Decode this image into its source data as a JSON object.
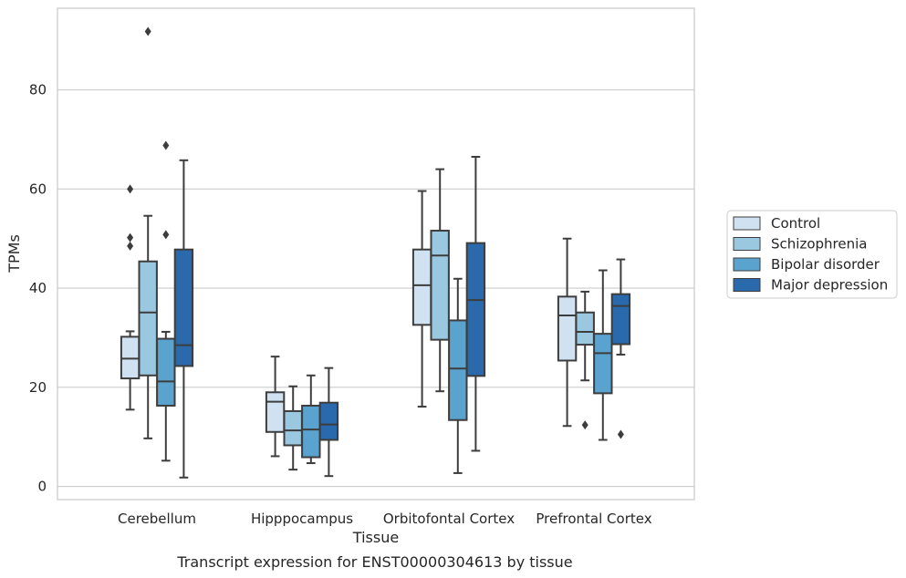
{
  "caption": "Transcript expression for ENST00000304613 by tissue",
  "chart_data": {
    "type": "box",
    "xlabel": "Tissue",
    "ylabel": "TPMs",
    "ylim": [
      -2,
      96
    ],
    "yticks": [
      0,
      20,
      40,
      60,
      80
    ],
    "grid": "horizontal",
    "legend_position": "right-outside",
    "categories": [
      "Cerebellum",
      "Hipppocampus",
      "Orbitofontal Cortex",
      "Prefrontal Cortex"
    ],
    "series": [
      {
        "name": "Control",
        "color": "#d0e1f2",
        "boxes": [
          {
            "whislo": 15.5,
            "q1": 21.8,
            "med": 25.8,
            "q3": 30.2,
            "whishi": 31.3,
            "fliers": [
              48.5,
              50.2,
              60.0
            ]
          },
          {
            "whislo": 6.1,
            "q1": 11.0,
            "med": 17.1,
            "q3": 19.0,
            "whishi": 26.2,
            "fliers": []
          },
          {
            "whislo": 16.1,
            "q1": 32.6,
            "med": 40.6,
            "q3": 47.8,
            "whishi": 59.6,
            "fliers": []
          },
          {
            "whislo": 12.2,
            "q1": 25.4,
            "med": 34.5,
            "q3": 38.3,
            "whishi": 50.0,
            "fliers": []
          }
        ]
      },
      {
        "name": "Schizophrenia",
        "color": "#9ac8e0",
        "boxes": [
          {
            "whislo": 9.7,
            "q1": 22.4,
            "med": 35.1,
            "q3": 45.4,
            "whishi": 54.6,
            "fliers": [
              91.8
            ]
          },
          {
            "whislo": 3.4,
            "q1": 8.3,
            "med": 11.3,
            "q3": 15.2,
            "whishi": 20.2,
            "fliers": []
          },
          {
            "whislo": 19.2,
            "q1": 29.6,
            "med": 46.6,
            "q3": 51.6,
            "whishi": 64.0,
            "fliers": []
          },
          {
            "whislo": 21.4,
            "q1": 28.6,
            "med": 31.2,
            "q3": 35.1,
            "whishi": 39.3,
            "fliers": [
              12.4
            ]
          }
        ]
      },
      {
        "name": "Bipolar disorder",
        "color": "#5ba3cf",
        "boxes": [
          {
            "whislo": 5.2,
            "q1": 16.3,
            "med": 21.2,
            "q3": 29.8,
            "whishi": 31.2,
            "fliers": [
              50.8,
              68.8
            ]
          },
          {
            "whislo": 4.7,
            "q1": 5.9,
            "med": 11.5,
            "q3": 16.3,
            "whishi": 22.4,
            "fliers": []
          },
          {
            "whislo": 2.7,
            "q1": 13.4,
            "med": 23.8,
            "q3": 33.5,
            "whishi": 41.9,
            "fliers": []
          },
          {
            "whislo": 9.4,
            "q1": 18.8,
            "med": 26.9,
            "q3": 30.8,
            "whishi": 43.6,
            "fliers": []
          }
        ]
      },
      {
        "name": "Major depression",
        "color": "#2a69ac",
        "boxes": [
          {
            "whislo": 1.8,
            "q1": 24.3,
            "med": 28.5,
            "q3": 47.8,
            "whishi": 65.8,
            "fliers": []
          },
          {
            "whislo": 2.1,
            "q1": 9.4,
            "med": 12.5,
            "q3": 16.9,
            "whishi": 23.9,
            "fliers": []
          },
          {
            "whislo": 7.2,
            "q1": 22.3,
            "med": 37.6,
            "q3": 49.1,
            "whishi": 66.5,
            "fliers": []
          },
          {
            "whislo": 26.6,
            "q1": 28.7,
            "med": 36.4,
            "q3": 38.8,
            "whishi": 45.8,
            "fliers": [
              10.5
            ]
          }
        ]
      }
    ]
  }
}
